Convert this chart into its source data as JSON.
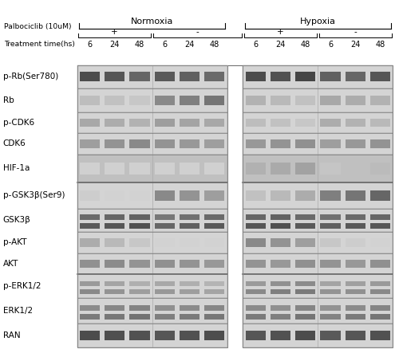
{
  "outer_bg": "#ffffff",
  "normoxia_label": "Normoxia",
  "hypoxia_label": "Hypoxia",
  "protein_labels": [
    "p-Rb(Ser780)",
    "Rb",
    "p-CDK6",
    "CDK6",
    "HIF-1a",
    "p-GSK3β(Ser9)",
    "GSK3β",
    "p-AKT",
    "AKT",
    "p-ERK1/2",
    "ERK1/2",
    "RAN"
  ],
  "lane_cols": [
    "6",
    "24",
    "48",
    "6",
    "24",
    "48",
    "6",
    "24",
    "48",
    "6",
    "24",
    "48"
  ],
  "header_font_size": 7.5,
  "lane_font_size": 7.0,
  "label_font_size": 7.5,
  "thick_border_after": [
    4,
    8
  ],
  "row_heights": [
    1.0,
    1.0,
    0.9,
    0.9,
    1.2,
    1.1,
    1.0,
    0.9,
    0.9,
    1.0,
    1.1,
    1.0
  ],
  "band_data": {
    "p-Rb(Ser780)": [
      0.85,
      0.8,
      0.72,
      0.78,
      0.75,
      0.7,
      0.85,
      0.82,
      0.88,
      0.75,
      0.72,
      0.8
    ],
    "Rb": [
      0.3,
      0.28,
      0.25,
      0.55,
      0.6,
      0.65,
      0.35,
      0.32,
      0.28,
      0.4,
      0.38,
      0.35
    ],
    "p-CDK6": [
      0.4,
      0.38,
      0.35,
      0.45,
      0.42,
      0.4,
      0.3,
      0.28,
      0.25,
      0.38,
      0.35,
      0.32
    ],
    "CDK6": [
      0.45,
      0.5,
      0.55,
      0.5,
      0.48,
      0.45,
      0.48,
      0.5,
      0.52,
      0.45,
      0.48,
      0.5
    ],
    "HIF-1a": [
      0.15,
      0.18,
      0.2,
      0.18,
      0.15,
      0.12,
      0.35,
      0.38,
      0.42,
      0.25,
      0.28,
      0.3
    ],
    "p-GSK3β(Ser9)": [
      0.22,
      0.2,
      0.18,
      0.55,
      0.5,
      0.45,
      0.28,
      0.32,
      0.38,
      0.6,
      0.65,
      0.72
    ],
    "GSK3β": [
      0.78,
      0.8,
      0.82,
      0.72,
      0.75,
      0.78,
      0.8,
      0.82,
      0.78,
      0.75,
      0.78,
      0.8
    ],
    "p-AKT": [
      0.38,
      0.32,
      0.25,
      0.2,
      0.18,
      0.15,
      0.55,
      0.5,
      0.45,
      0.25,
      0.22,
      0.2
    ],
    "AKT": [
      0.52,
      0.54,
      0.5,
      0.52,
      0.5,
      0.48,
      0.5,
      0.48,
      0.52,
      0.5,
      0.48,
      0.52
    ],
    "p-ERK1/2": [
      0.55,
      0.5,
      0.45,
      0.48,
      0.45,
      0.42,
      0.55,
      0.6,
      0.62,
      0.5,
      0.52,
      0.55
    ],
    "ERK1/2": [
      0.62,
      0.64,
      0.66,
      0.6,
      0.62,
      0.64,
      0.62,
      0.6,
      0.65,
      0.58,
      0.62,
      0.65
    ],
    "RAN": [
      0.85,
      0.83,
      0.82,
      0.8,
      0.82,
      0.84,
      0.8,
      0.82,
      0.85,
      0.78,
      0.8,
      0.82
    ]
  },
  "double_band_proteins": [
    "ERK1/2",
    "p-ERK1/2",
    "GSK3β"
  ]
}
